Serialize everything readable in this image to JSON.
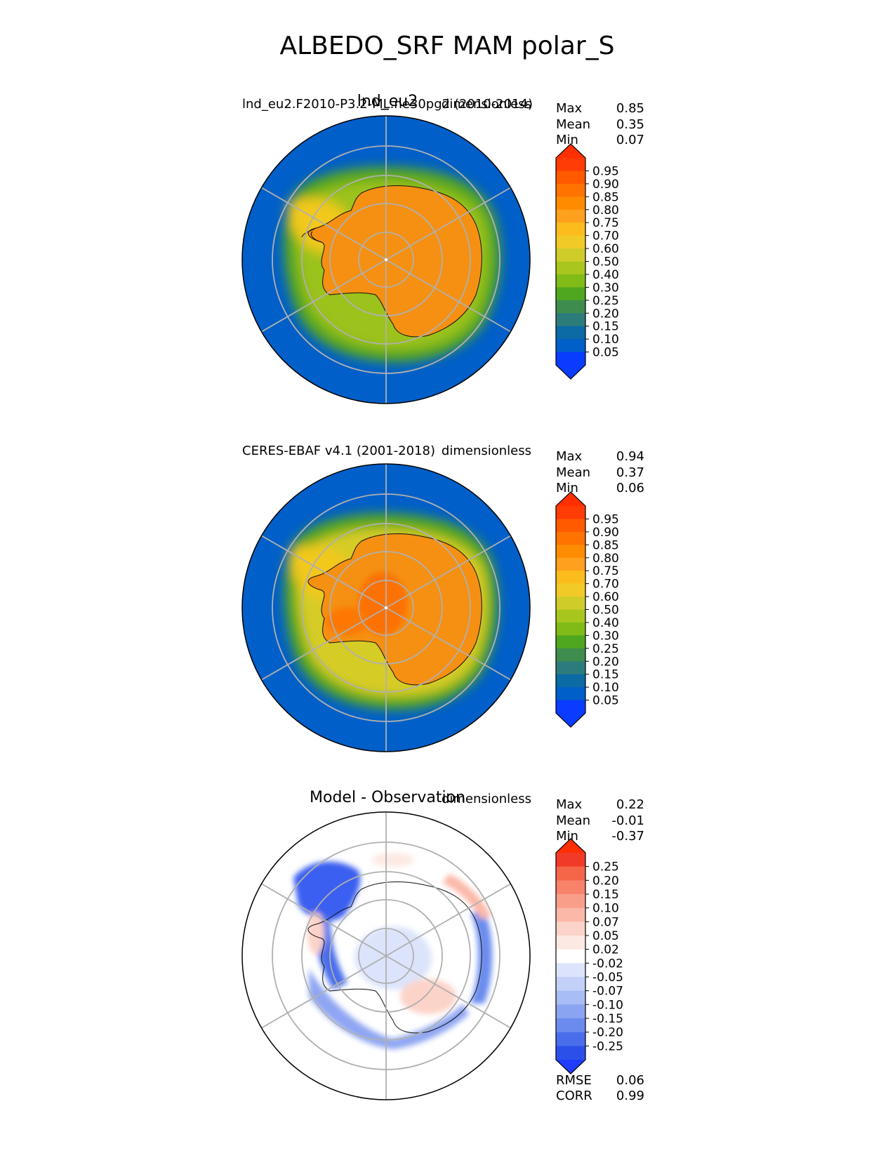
{
  "title": "ALBEDO_SRF MAM polar_S",
  "colors": {
    "land": "#f59012",
    "ocean": "#005fc8",
    "grid": "#b0b0b0",
    "coast": "#111111"
  },
  "panels": [
    {
      "id": "test",
      "center_title": "lnd_eu2",
      "left_title": "lnd_eu2.F2010-P3.2-ML.ne30pg2 (2010-2014)",
      "right_title": "dimensionless",
      "stats": [
        {
          "label": "Max",
          "value": "0.85"
        },
        {
          "label": "Mean",
          "value": "0.35"
        },
        {
          "label": "Min",
          "value": "0.07"
        }
      ],
      "colorbar": {
        "ticks": [
          "0.95",
          "0.90",
          "0.85",
          "0.80",
          "0.75",
          "0.70",
          "0.60",
          "0.50",
          "0.40",
          "0.30",
          "0.25",
          "0.20",
          "0.15",
          "0.10",
          "0.05"
        ],
        "colors": [
          "#ff3c05",
          "#ff5a00",
          "#ff7300",
          "#ff8c00",
          "#ffa01e",
          "#fcbc1c",
          "#f2ca28",
          "#cfcc2a",
          "#a9c61e",
          "#80bb18",
          "#4fa61f",
          "#3e8d4e",
          "#2d7c7c",
          "#0c6aa5",
          "#005fc8",
          "#0a3cff"
        ],
        "top_color": "#ff2f00",
        "bottom_color": "#0a3cff"
      },
      "metrics": []
    },
    {
      "id": "reference",
      "center_title": "",
      "left_title": "CERES-EBAF v4.1 (2001-2018)",
      "right_title": "dimensionless",
      "stats": [
        {
          "label": "Max",
          "value": "0.94"
        },
        {
          "label": "Mean",
          "value": "0.37"
        },
        {
          "label": "Min",
          "value": "0.06"
        }
      ],
      "colorbar": {
        "ticks": [
          "0.95",
          "0.90",
          "0.85",
          "0.80",
          "0.75",
          "0.70",
          "0.60",
          "0.50",
          "0.40",
          "0.30",
          "0.25",
          "0.20",
          "0.15",
          "0.10",
          "0.05"
        ],
        "colors": [
          "#ff3c05",
          "#ff5a00",
          "#ff7300",
          "#ff8c00",
          "#ffa01e",
          "#fcbc1c",
          "#f2ca28",
          "#cfcc2a",
          "#a9c61e",
          "#80bb18",
          "#4fa61f",
          "#3e8d4e",
          "#2d7c7c",
          "#0c6aa5",
          "#005fc8",
          "#0a3cff"
        ],
        "top_color": "#ff2f00",
        "bottom_color": "#0a3cff"
      },
      "metrics": []
    },
    {
      "id": "diff",
      "center_title": "Model - Observation",
      "left_title": "",
      "right_title": "dimensionless",
      "stats": [
        {
          "label": "Max",
          "value": "0.22"
        },
        {
          "label": "Mean",
          "value": "-0.01"
        },
        {
          "label": "Min",
          "value": "-0.37"
        }
      ],
      "colorbar": {
        "ticks": [
          "0.25",
          "0.20",
          "0.15",
          "0.10",
          "0.07",
          "0.05",
          "0.02",
          "-0.02",
          "-0.05",
          "-0.07",
          "-0.10",
          "-0.15",
          "-0.20",
          "-0.25"
        ],
        "colors": [
          "#f23b26",
          "#f56649",
          "#f8826a",
          "#f99e89",
          "#fbb8a8",
          "#fcd3c8",
          "#fde9e3",
          "#ffffff",
          "#dce4fb",
          "#c3d0f8",
          "#a8bcf5",
          "#8aa4f1",
          "#6b8cee",
          "#4a6eeb",
          "#2b50ea"
        ],
        "top_color": "#ff2f00",
        "bottom_color": "#1f3cff"
      },
      "metrics": [
        {
          "label": "RMSE",
          "value": "0.06"
        },
        {
          "label": "CORR",
          "value": "0.99"
        }
      ]
    }
  ],
  "chart_data": [
    {
      "type": "heatmap",
      "projection": "south polar stereographic",
      "variable": "ALBEDO_SRF",
      "season": "MAM",
      "title": "lnd_eu2",
      "subtitle": "lnd_eu2.F2010-P3.2-ML.ne30pg2 (2010-2014)",
      "units": "dimensionless",
      "levels": [
        0.05,
        0.1,
        0.15,
        0.2,
        0.25,
        0.3,
        0.4,
        0.5,
        0.6,
        0.7,
        0.75,
        0.8,
        0.85,
        0.9,
        0.95
      ],
      "max": 0.85,
      "mean": 0.35,
      "min": 0.07
    },
    {
      "type": "heatmap",
      "projection": "south polar stereographic",
      "variable": "ALBEDO_SRF",
      "season": "MAM",
      "subtitle": "CERES-EBAF v4.1 (2001-2018)",
      "units": "dimensionless",
      "levels": [
        0.05,
        0.1,
        0.15,
        0.2,
        0.25,
        0.3,
        0.4,
        0.5,
        0.6,
        0.7,
        0.75,
        0.8,
        0.85,
        0.9,
        0.95
      ],
      "max": 0.94,
      "mean": 0.37,
      "min": 0.06
    },
    {
      "type": "heatmap",
      "projection": "south polar stereographic",
      "variable": "ALBEDO_SRF",
      "season": "MAM",
      "title": "Model - Observation",
      "units": "dimensionless",
      "levels": [
        -0.25,
        -0.2,
        -0.15,
        -0.1,
        -0.07,
        -0.05,
        -0.02,
        0.02,
        0.05,
        0.07,
        0.1,
        0.15,
        0.2,
        0.25
      ],
      "max": 0.22,
      "mean": -0.01,
      "min": -0.37,
      "rmse": 0.06,
      "corr": 0.99
    }
  ]
}
